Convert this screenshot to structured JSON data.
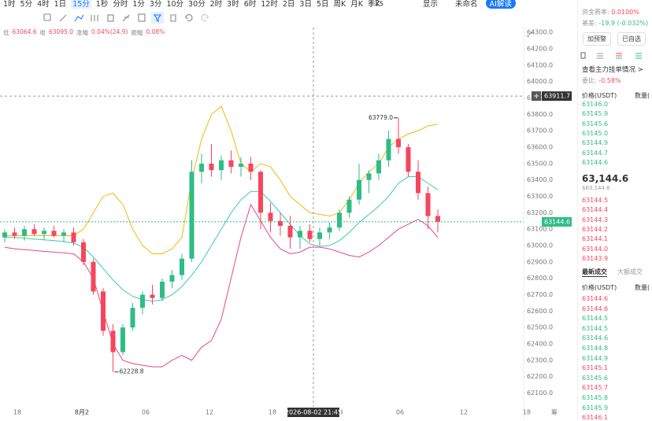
{
  "toolbar": {
    "intervals": [
      "1时",
      "5分",
      "4时",
      "1日",
      "15分",
      "1秒",
      "分时",
      "1分",
      "3分",
      "10分",
      "30分",
      "2时",
      "3时",
      "6时",
      "12时",
      "2日",
      "3日",
      "5日",
      "周K",
      "月K",
      "季K"
    ],
    "active": 4,
    "refresh": "2s",
    "display": "显示",
    "layout": "未命名",
    "ai": "AI解读"
  },
  "info": [
    {
      "label": "低",
      "value": "63064.6"
    },
    {
      "label": "收",
      "value": "63095.0"
    },
    {
      "label": "涨幅",
      "value": "0.04%(24.9)"
    },
    {
      "label": "振幅",
      "value": "0.08%"
    }
  ],
  "chart_data": {
    "type": "candlestick",
    "up_color": "#2ebd85",
    "down_color": "#f6465d",
    "candles": [
      [
        63050,
        63100,
        63020,
        63080
      ],
      [
        63080,
        63110,
        63040,
        63060
      ],
      [
        63060,
        63120,
        63030,
        63100
      ],
      [
        63100,
        63130,
        63060,
        63070
      ],
      [
        63070,
        63110,
        63030,
        63090
      ],
      [
        63090,
        63120,
        63050,
        63060
      ],
      [
        63060,
        63100,
        63020,
        63080
      ],
      [
        63080,
        63110,
        63000,
        63020
      ],
      [
        63020,
        63040,
        62880,
        62900
      ],
      [
        62900,
        62920,
        62700,
        62720
      ],
      [
        62720,
        62740,
        62450,
        62480
      ],
      [
        62480,
        62520,
        62228.8,
        62350
      ],
      [
        62350,
        62520,
        62330,
        62500
      ],
      [
        62500,
        62650,
        62480,
        62620
      ],
      [
        62620,
        62720,
        62580,
        62700
      ],
      [
        62700,
        62760,
        62640,
        62680
      ],
      [
        62680,
        62800,
        62660,
        62780
      ],
      [
        62780,
        62850,
        62740,
        62820
      ],
      [
        62820,
        62950,
        62790,
        62920
      ],
      [
        62920,
        63520,
        62900,
        63450
      ],
      [
        63450,
        63560,
        63380,
        63500
      ],
      [
        63500,
        63620,
        63420,
        63460
      ],
      [
        63460,
        63550,
        63400,
        63520
      ],
      [
        63520,
        63580,
        63440,
        63480
      ],
      [
        63480,
        63540,
        63420,
        63500
      ],
      [
        63500,
        63540,
        63400,
        63450
      ],
      [
        63450,
        63460,
        63100,
        63200
      ],
      [
        63200,
        63260,
        63080,
        63150
      ],
      [
        63150,
        63200,
        63060,
        63120
      ],
      [
        63120,
        63180,
        62980,
        63050
      ],
      [
        63050,
        63120,
        62980,
        63090
      ],
      [
        63090,
        63130,
        63020,
        63040
      ],
      [
        63040,
        63110,
        63000,
        63080
      ],
      [
        63080,
        63140,
        63040,
        63110
      ],
      [
        63110,
        63220,
        63090,
        63200
      ],
      [
        63200,
        63300,
        63170,
        63280
      ],
      [
        63280,
        63500,
        63250,
        63400
      ],
      [
        63400,
        63460,
        63320,
        63440
      ],
      [
        63440,
        63560,
        63400,
        63520
      ],
      [
        63520,
        63700,
        63480,
        63650
      ],
      [
        63650,
        63779,
        63560,
        63600
      ],
      [
        63600,
        63620,
        63420,
        63450
      ],
      [
        63450,
        63520,
        63280,
        63320
      ],
      [
        63320,
        63360,
        63100,
        63180
      ],
      [
        63180,
        63220,
        63080,
        63144.6
      ]
    ],
    "series": [
      {
        "color": "#f0b90b",
        "values": [
          63060,
          63060,
          63060,
          63060,
          63060,
          63060,
          63060,
          63060,
          63100,
          63200,
          63300,
          63320,
          63250,
          63100,
          63000,
          62950,
          62950,
          62980,
          63050,
          63400,
          63650,
          63800,
          63850,
          63700,
          63500,
          63450,
          63500,
          63480,
          63400,
          63300,
          63250,
          63200,
          63190,
          63180,
          63200,
          63280,
          63380,
          63450,
          63500,
          63600,
          63650,
          63680,
          63700,
          63730,
          63740
        ]
      },
      {
        "color": "#3cc8b4",
        "values": [
          63050,
          63050,
          63045,
          63040,
          63035,
          63030,
          63025,
          63015,
          62990,
          62930,
          62860,
          62790,
          62730,
          62690,
          62670,
          62660,
          62670,
          62700,
          62750,
          62820,
          62900,
          63000,
          63100,
          63200,
          63280,
          63330,
          63330,
          63270,
          63200,
          63130,
          63060,
          63010,
          62995,
          63000,
          63030,
          63080,
          63140,
          63190,
          63240,
          63300,
          63380,
          63420,
          63420,
          63380,
          63340
        ]
      },
      {
        "color": "#e8468c",
        "values": [
          62990,
          62980,
          62975,
          62970,
          62965,
          62960,
          62955,
          62950,
          62900,
          62800,
          62600,
          62400,
          62300,
          62280,
          62270,
          62260,
          62260,
          62300,
          62330,
          62300,
          62380,
          62420,
          62550,
          62800,
          63050,
          63250,
          63150,
          63050,
          62980,
          62950,
          62960,
          62990,
          62990,
          62980,
          62960,
          62940,
          62930,
          62960,
          63000,
          63050,
          63100,
          63130,
          63160,
          63120,
          63050
        ]
      }
    ],
    "ylim": [
      62040,
      64330
    ],
    "yticks": [
      {
        "value": 64300,
        "label": "64300.0"
      },
      {
        "value": 64200,
        "label": "64200.0"
      },
      {
        "value": 64100,
        "label": "64100.0"
      },
      {
        "value": 64000,
        "label": "64000.0"
      },
      {
        "value": 63900,
        "label": "63900.0"
      },
      {
        "value": 63800,
        "label": "63800.0"
      },
      {
        "value": 63700,
        "label": "63700.0"
      },
      {
        "value": 63600,
        "label": "63600.0"
      },
      {
        "value": 63500,
        "label": "63500.0"
      },
      {
        "value": 63400,
        "label": "63400.0"
      },
      {
        "value": 63300,
        "label": "63300.0"
      },
      {
        "value": 63200,
        "label": "63200.0"
      },
      {
        "value": 63100,
        "label": "63100.0"
      },
      {
        "value": 63000,
        "label": "63000.0"
      },
      {
        "value": 62900,
        "label": "62900.0"
      },
      {
        "value": 62800,
        "label": "62800.0"
      },
      {
        "value": 62700,
        "label": "62700.0"
      },
      {
        "value": 62600,
        "label": "62600.0"
      },
      {
        "value": 62500,
        "label": "62500.0"
      },
      {
        "value": 62400,
        "label": "62400.0"
      },
      {
        "value": 62300,
        "label": "62300.0"
      },
      {
        "value": 62200,
        "label": "62200.0"
      },
      {
        "value": 62100,
        "label": "62100.0"
      }
    ],
    "x_labels": [
      "18",
      "8月2",
      "06",
      "12",
      "18",
      "3",
      "06",
      "12",
      "18"
    ],
    "axis_extra": "筹",
    "crosshair": {
      "price": 63911.7,
      "time": "2026-08-02 21:45"
    },
    "last_price": 63144.6,
    "annotations": [
      {
        "candle": 40,
        "value": 63779,
        "label": "63779.0"
      },
      {
        "candle": 11,
        "value": 62228.8,
        "label": "62228.8"
      }
    ]
  },
  "panel": {
    "funding_label": "资金费率:",
    "funding": "0.0100%",
    "basis_label": "基差:",
    "basis": "-19.9 (-0.032%)",
    "buttons": [
      "加预警",
      "已自选"
    ],
    "whale": "查看主力挂单情况",
    "ratio_label": "委比:",
    "ratio": "-0.58%",
    "price_header": "价格(USDT)",
    "qty_header": "数量(",
    "asks": [
      "63146.0",
      "63145.9",
      "63145.6",
      "63145.0",
      "63144.9",
      "63144.7",
      "63144.6"
    ],
    "asks_color": "#2ebd85",
    "mid": "63,144.6",
    "mid_usd": "$63,144.6",
    "bids": [
      "63144.5",
      "63144.4",
      "63144.3",
      "63144.2",
      "63144.1",
      "63144.0",
      "63143.9"
    ],
    "bids_color": "#f6465d",
    "tabs": [
      "最新成交",
      "大额成交"
    ],
    "trades": [
      {
        "price": "63144.6",
        "color": "#f6465d"
      },
      {
        "price": "63144.6",
        "color": "#f6465d"
      },
      {
        "price": "63144.5",
        "color": "#2ebd85"
      },
      {
        "price": "63144.5",
        "color": "#2ebd85"
      },
      {
        "price": "63144.6",
        "color": "#2ebd85"
      },
      {
        "price": "63144.8",
        "color": "#2ebd85"
      },
      {
        "price": "63144.9",
        "color": "#2ebd85"
      },
      {
        "price": "63145.1",
        "color": "#f6465d"
      },
      {
        "price": "63145.6",
        "color": "#2ebd85"
      },
      {
        "price": "63145.7",
        "color": "#f6465d"
      },
      {
        "price": "63145.8",
        "color": "#2ebd85"
      },
      {
        "price": "63145.9",
        "color": "#2ebd85"
      },
      {
        "price": "63146.1",
        "color": "#f6465d"
      }
    ]
  }
}
